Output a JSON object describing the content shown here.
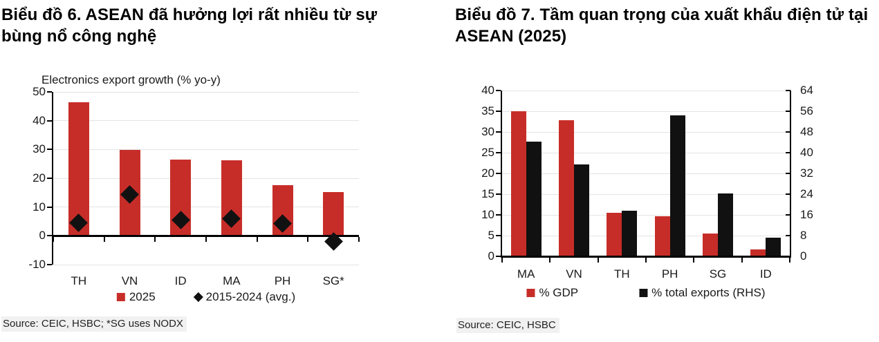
{
  "panels": [
    {
      "title": "Biểu đồ 6. ASEAN đã hưởng lợi rất nhiều từ sự bùng nổ công nghệ",
      "source": "Source: CEIC, HSBC; *SG uses NODX"
    },
    {
      "title": "Biểu đồ 7. Tầm quan trọng của xuất khẩu điện tử tại ASEAN (2025)",
      "source": "Source: CEIC, HSBC"
    }
  ],
  "colors": {
    "bar_red": "#c72d28",
    "bar_black": "#111111",
    "gridline": "#e3e3e3",
    "axis": "#000000"
  },
  "chart_data": [
    {
      "type": "bar",
      "title": "Electronics export growth (% yo-y)",
      "categories": [
        "TH",
        "VN",
        "ID",
        "MA",
        "PH",
        "SG*"
      ],
      "series": [
        {
          "name": "2025",
          "type": "bar",
          "color": "#c72d28",
          "values": [
            46.5,
            29.8,
            26.6,
            26.3,
            17.5,
            15.3
          ]
        },
        {
          "name": "2015-2024 (avg.)",
          "type": "diamond",
          "color": "#111111",
          "values": [
            4.5,
            14.3,
            5.5,
            6.0,
            4.2,
            -2.0
          ]
        }
      ],
      "ylim": [
        -10,
        50
      ],
      "ytick_step": 10,
      "grid": true,
      "legend_position": "bottom"
    },
    {
      "type": "bar",
      "title": "",
      "categories": [
        "MA",
        "VN",
        "TH",
        "PH",
        "SG",
        "ID"
      ],
      "series": [
        {
          "name": "% GDP",
          "type": "bar",
          "axis": "left",
          "color": "#c72d28",
          "values": [
            35.0,
            32.9,
            10.5,
            9.6,
            5.5,
            1.7
          ]
        },
        {
          "name": "% total exports (RHS)",
          "type": "bar",
          "axis": "right",
          "color": "#111111",
          "values": [
            44.3,
            35.5,
            17.5,
            54.5,
            24.3,
            7.2
          ]
        }
      ],
      "ylim_left": [
        0,
        40
      ],
      "ytick_step_left": 5,
      "ylim_right": [
        0,
        64
      ],
      "ytick_step_right": 8,
      "grid": true,
      "legend_position": "bottom"
    }
  ]
}
